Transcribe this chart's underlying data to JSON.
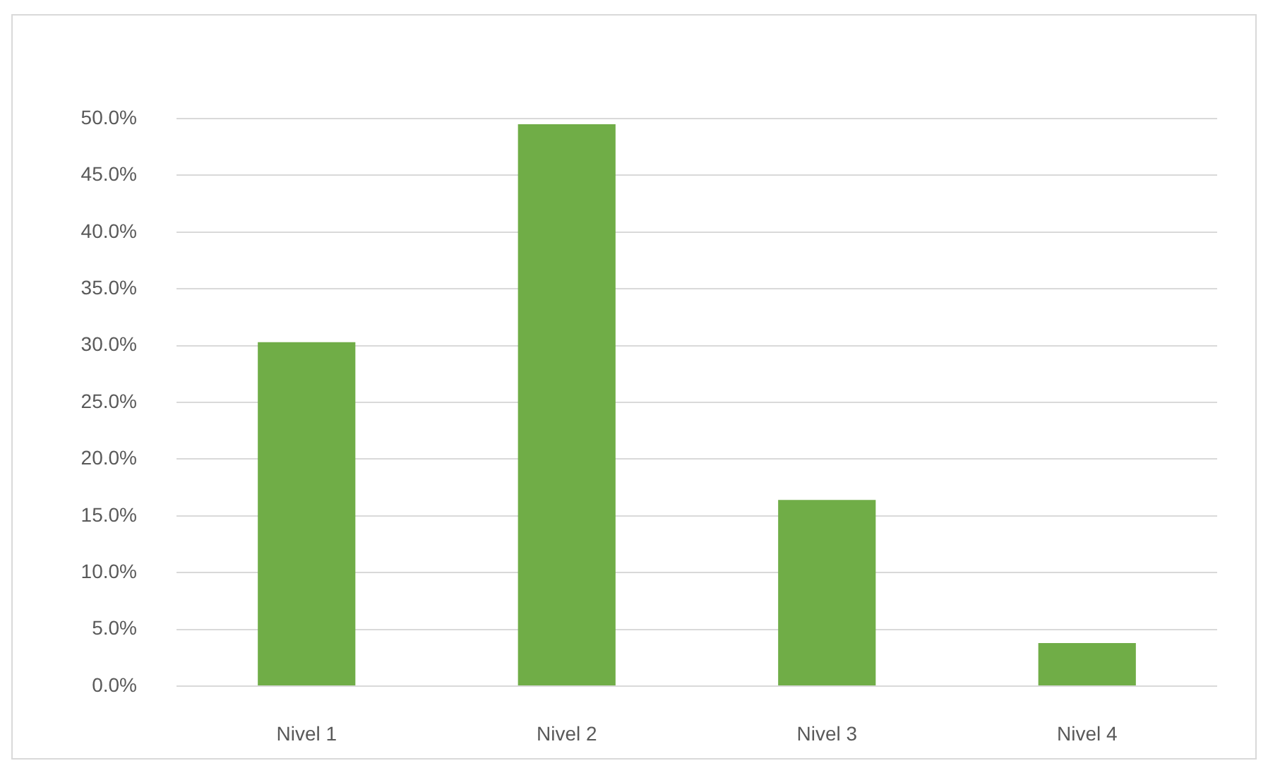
{
  "chart_data": {
    "type": "bar",
    "categories": [
      "Nivel 1",
      "Nivel 2",
      "Nivel 3",
      "Nivel 4"
    ],
    "values": [
      30.3,
      49.5,
      16.4,
      3.8
    ],
    "color": "#70ad47",
    "ylim": [
      0,
      50
    ],
    "yticks": [
      {
        "value": 0,
        "label": "0.0%"
      },
      {
        "value": 5,
        "label": "5.0%"
      },
      {
        "value": 10,
        "label": "10.0%"
      },
      {
        "value": 15,
        "label": "15.0%"
      },
      {
        "value": 20,
        "label": "20.0%"
      },
      {
        "value": 25,
        "label": "25.0%"
      },
      {
        "value": 30,
        "label": "30.0%"
      },
      {
        "value": 35,
        "label": "35.0%"
      },
      {
        "value": 40,
        "label": "40.0%"
      },
      {
        "value": 45,
        "label": "45.0%"
      },
      {
        "value": 50,
        "label": "50.0%"
      }
    ],
    "grid": "y"
  }
}
